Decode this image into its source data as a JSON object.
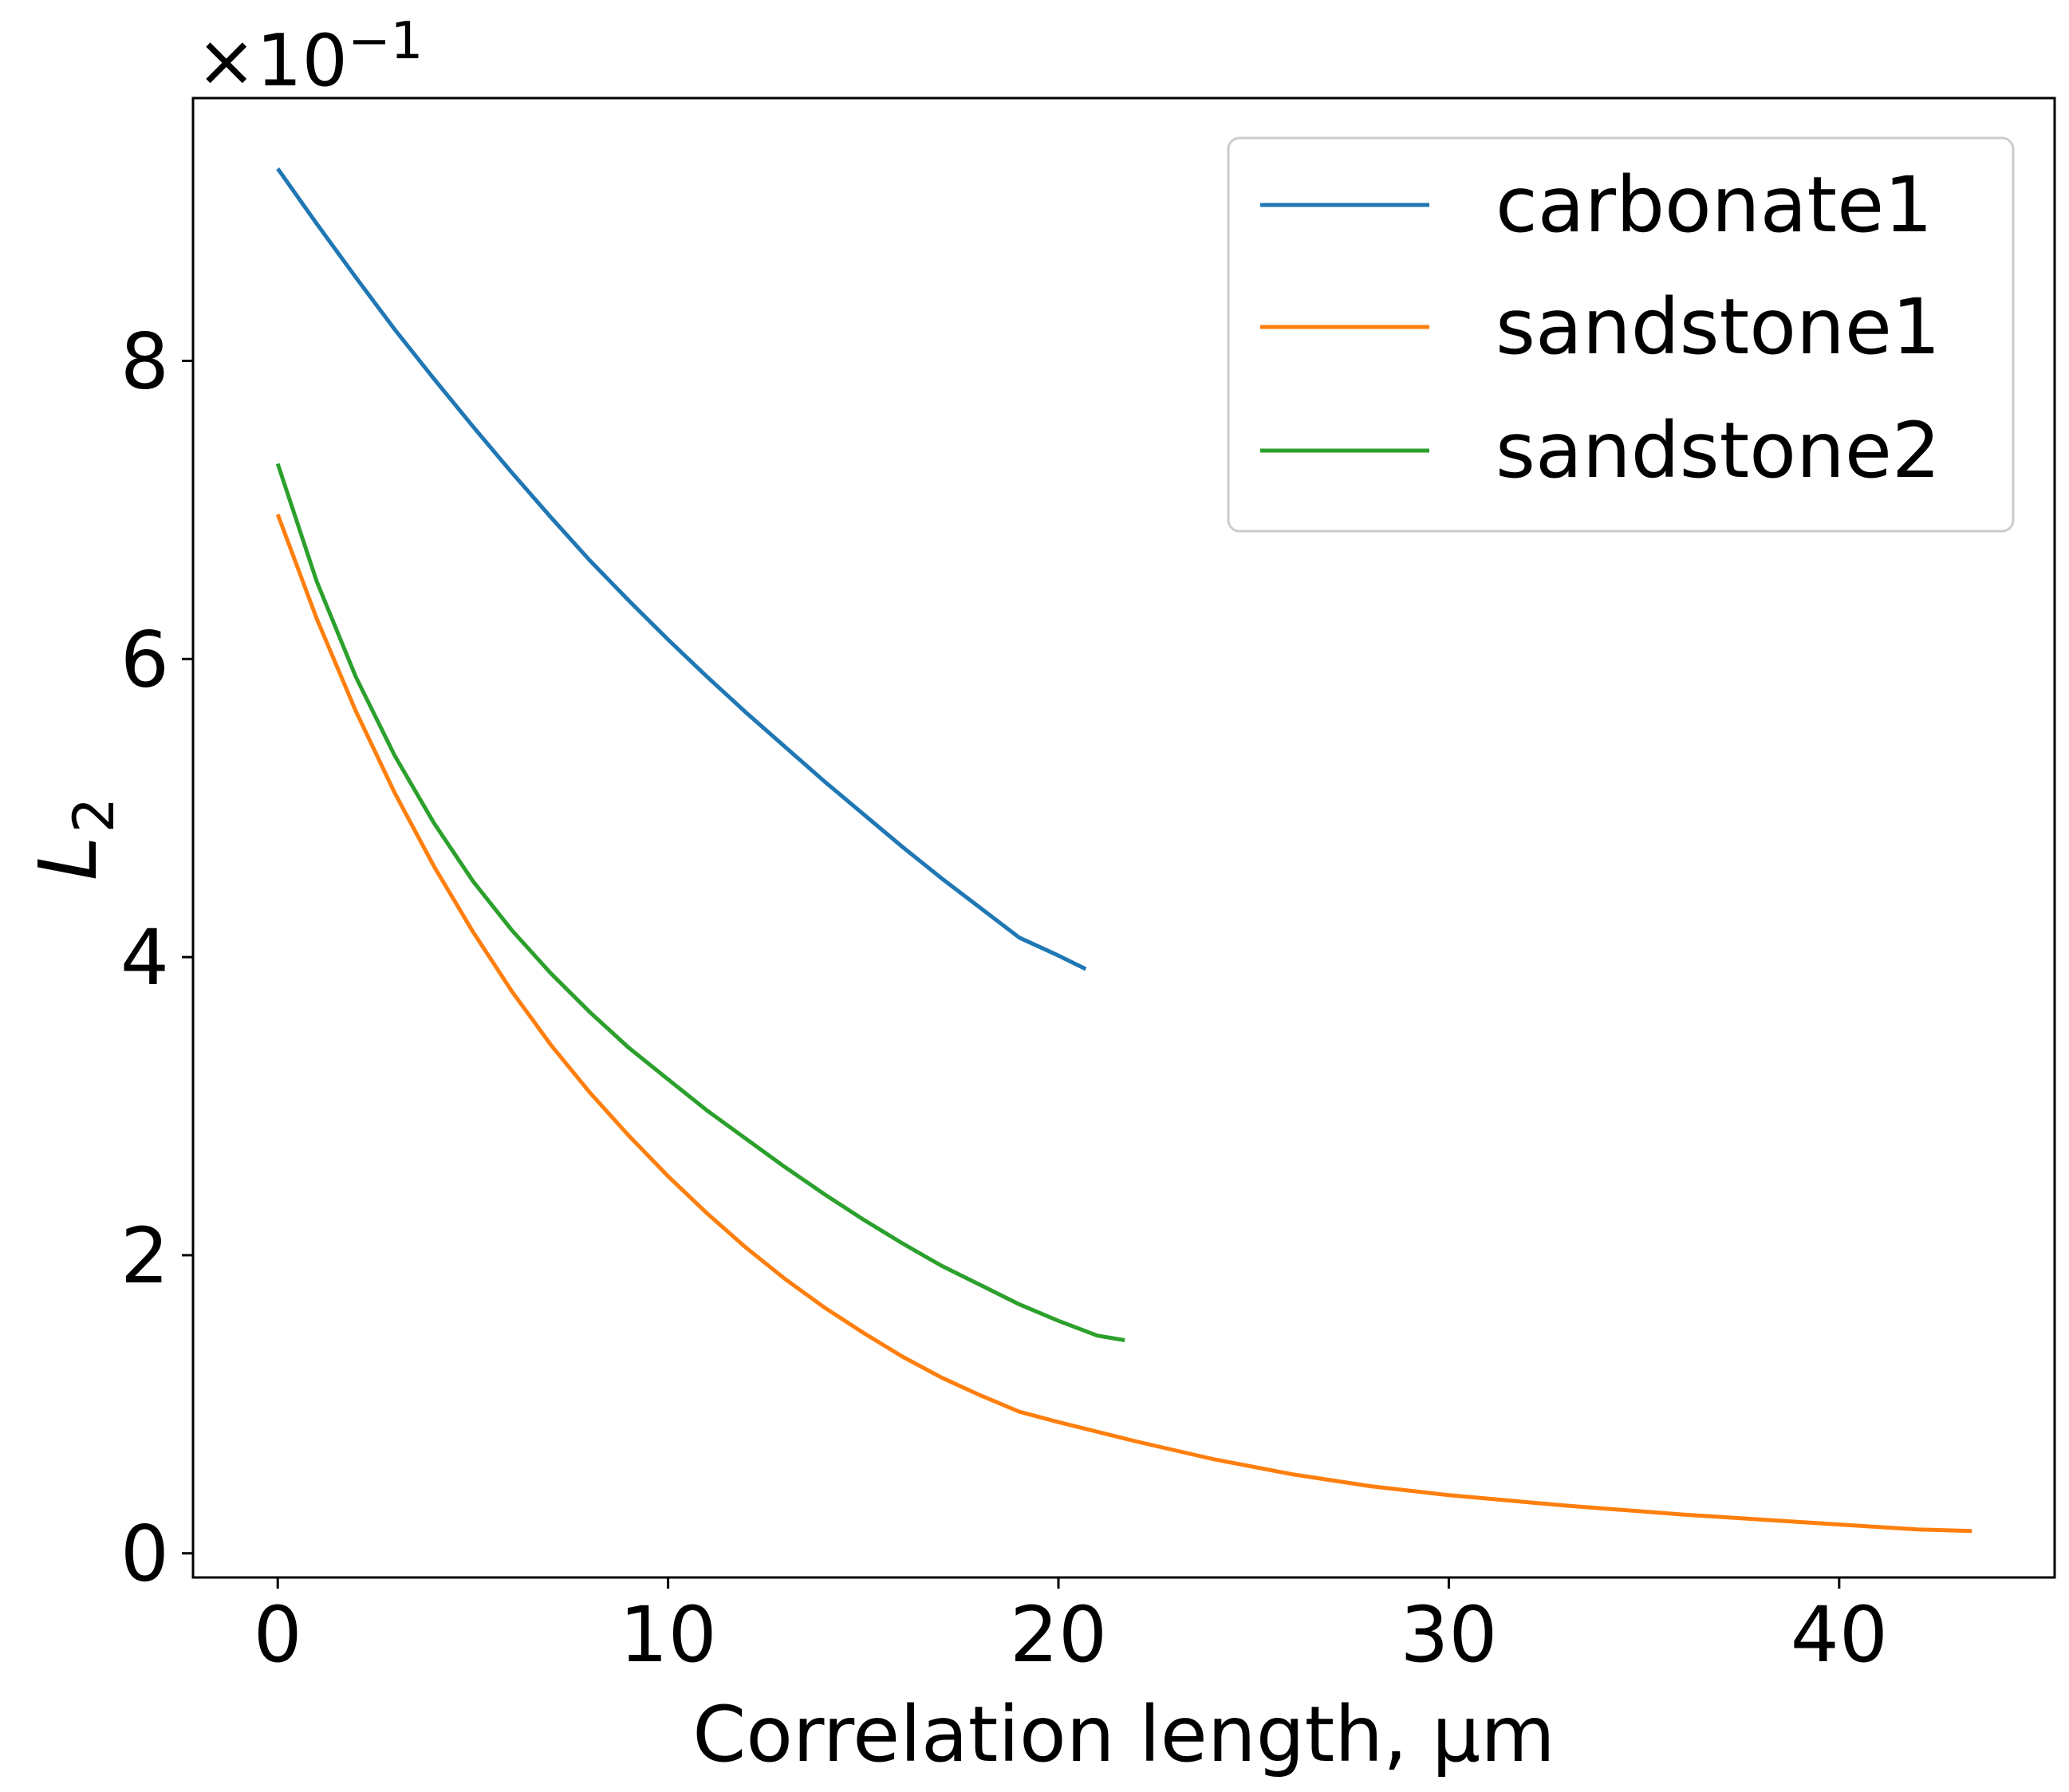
{
  "chart_data": {
    "type": "line",
    "title": "",
    "xlabel": "Correlation length, µm",
    "ylabel_main": "L",
    "ylabel_sub": "2",
    "offset_label": {
      "prefix": "×10",
      "exponent": "−1"
    },
    "xlim": [
      -2.17,
      45.52
    ],
    "ylim": [
      -0.0162,
      0.9763
    ],
    "x_ticks": [
      {
        "value": 0,
        "label": "0"
      },
      {
        "value": 10,
        "label": "10"
      },
      {
        "value": 20,
        "label": "20"
      },
      {
        "value": 30,
        "label": "30"
      },
      {
        "value": 40,
        "label": "40"
      }
    ],
    "y_ticks": [
      {
        "value": 0.0,
        "label": "0"
      },
      {
        "value": 0.2,
        "label": "2"
      },
      {
        "value": 0.4,
        "label": "4"
      },
      {
        "value": 0.6,
        "label": "6"
      },
      {
        "value": 0.8,
        "label": "8"
      }
    ],
    "grid": false,
    "legend_position": "top-right",
    "series": [
      {
        "name": "carbonate1",
        "color": "#1f77b4",
        "x": [
          0,
          1,
          2,
          3,
          4,
          5,
          6,
          7,
          8,
          9,
          10,
          11,
          12,
          13,
          14,
          15,
          16,
          17,
          18,
          19,
          20,
          20.7
        ],
        "y": [
          0.929,
          0.892,
          0.856,
          0.821,
          0.788,
          0.756,
          0.725,
          0.695,
          0.666,
          0.639,
          0.613,
          0.588,
          0.564,
          0.541,
          0.518,
          0.496,
          0.474,
          0.453,
          0.433,
          0.413,
          0.401,
          0.392
        ]
      },
      {
        "name": "sandstone1",
        "color": "#ff7f0e",
        "x": [
          0,
          1,
          2,
          3,
          4,
          5,
          6,
          7,
          8,
          9,
          10,
          11,
          12,
          13,
          14,
          15,
          16,
          17,
          18,
          19,
          20,
          22,
          24,
          26,
          28,
          30,
          33,
          36,
          39,
          42,
          43.4
        ],
        "y": [
          0.697,
          0.627,
          0.565,
          0.51,
          0.461,
          0.417,
          0.377,
          0.341,
          0.309,
          0.28,
          0.253,
          0.228,
          0.205,
          0.184,
          0.165,
          0.148,
          0.132,
          0.118,
          0.106,
          0.095,
          0.088,
          0.075,
          0.063,
          0.053,
          0.045,
          0.039,
          0.032,
          0.026,
          0.021,
          0.016,
          0.015
        ]
      },
      {
        "name": "sandstone2",
        "color": "#2ca02c",
        "x": [
          0,
          1,
          2,
          3,
          4,
          5,
          6,
          7,
          8,
          9,
          10,
          11,
          12,
          13,
          14,
          15,
          16,
          17,
          18,
          19,
          20,
          21,
          21.7
        ],
        "y": [
          0.731,
          0.652,
          0.588,
          0.535,
          0.49,
          0.451,
          0.418,
          0.389,
          0.363,
          0.339,
          0.318,
          0.297,
          0.278,
          0.259,
          0.241,
          0.224,
          0.208,
          0.193,
          0.18,
          0.167,
          0.156,
          0.146,
          0.143
        ]
      }
    ]
  }
}
